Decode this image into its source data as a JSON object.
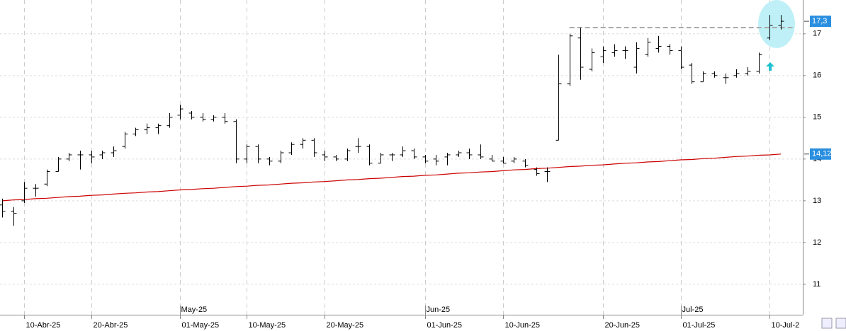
{
  "chart_data": {
    "type": "ohlc",
    "categories": [
      null,
      null,
      "10-Abr-25",
      null,
      null,
      null,
      null,
      null,
      "20-Abr-25",
      null,
      null,
      null,
      null,
      null,
      null,
      null,
      "01-May-25",
      null,
      null,
      null,
      null,
      null,
      "10-May-25",
      null,
      null,
      null,
      null,
      null,
      null,
      "20-May-25",
      null,
      null,
      null,
      null,
      null,
      null,
      null,
      null,
      "01-Jun-25",
      null,
      null,
      null,
      null,
      null,
      null,
      "10-Jun-25",
      null,
      null,
      null,
      null,
      null,
      null,
      null,
      null,
      "20-Jun-25",
      null,
      null,
      null,
      null,
      null,
      null,
      "01-Jul-25",
      null,
      null,
      null,
      null,
      null,
      null,
      null,
      "10-Jul-2",
      null
    ],
    "month_categories": [
      null,
      null,
      null,
      null,
      null,
      null,
      null,
      null,
      null,
      null,
      null,
      null,
      null,
      null,
      null,
      null,
      "May-25",
      null,
      null,
      null,
      null,
      null,
      null,
      null,
      null,
      null,
      null,
      null,
      null,
      null,
      null,
      null,
      null,
      null,
      null,
      null,
      null,
      null,
      "Jun-25",
      null,
      null,
      null,
      null,
      null,
      null,
      null,
      null,
      null,
      null,
      null,
      null,
      null,
      null,
      null,
      null,
      null,
      null,
      null,
      null,
      null,
      null,
      "Jul-25",
      null,
      null,
      null,
      null,
      null,
      null,
      null,
      null,
      null
    ],
    "open": [
      12.9,
      12.75,
      13.0,
      13.3,
      13.4,
      13.7,
      14.0,
      14.1,
      14.1,
      14.1,
      14.15,
      14.3,
      14.6,
      14.7,
      14.75,
      14.8,
      15.05,
      15.1,
      15.0,
      14.95,
      15.0,
      14.9,
      14.0,
      14.3,
      14.0,
      13.95,
      14.15,
      14.35,
      14.45,
      14.1,
      14.05,
      14.0,
      14.3,
      14.3,
      13.9,
      14.1,
      14.1,
      14.2,
      14.05,
      14.0,
      14.05,
      14.1,
      14.15,
      14.1,
      14.0,
      13.95,
      13.95,
      13.95,
      13.75,
      13.7,
      14.45,
      15.8,
      16.9,
      16.15,
      16.45,
      16.55,
      16.6,
      16.2,
      16.5,
      16.65,
      16.7,
      16.6,
      16.25,
      15.85,
      16.05,
      15.95,
      16.0,
      16.05,
      16.1,
      16.9,
      17.2
    ],
    "high": [
      13.05,
      12.85,
      13.45,
      13.4,
      13.75,
      14.05,
      14.15,
      14.2,
      14.2,
      14.2,
      14.3,
      14.65,
      14.75,
      14.85,
      14.85,
      15.1,
      15.3,
      15.15,
      15.1,
      15.05,
      15.1,
      14.95,
      14.35,
      14.35,
      14.05,
      14.2,
      14.4,
      14.5,
      14.5,
      14.2,
      14.1,
      14.25,
      14.5,
      14.35,
      14.15,
      14.15,
      14.3,
      14.25,
      14.1,
      14.1,
      14.15,
      14.2,
      14.25,
      14.35,
      14.1,
      14.05,
      14.05,
      14.0,
      13.8,
      13.8,
      16.5,
      17.0,
      17.15,
      16.65,
      16.7,
      16.75,
      16.7,
      16.8,
      16.9,
      16.95,
      16.75,
      16.7,
      16.3,
      16.1,
      16.1,
      16.05,
      16.15,
      16.2,
      16.55,
      17.45,
      17.45
    ],
    "low": [
      12.6,
      12.4,
      12.95,
      13.1,
      13.35,
      13.7,
      13.95,
      13.75,
      13.9,
      14.0,
      14.05,
      14.25,
      14.55,
      14.6,
      14.6,
      14.75,
      14.95,
      14.95,
      14.9,
      14.9,
      14.85,
      13.9,
      13.9,
      13.9,
      13.85,
      13.9,
      14.1,
      14.25,
      14.05,
      13.95,
      13.95,
      13.95,
      14.15,
      13.85,
      13.9,
      13.95,
      14.05,
      14.0,
      13.9,
      13.85,
      13.85,
      14.05,
      14.0,
      14.0,
      13.95,
      13.9,
      13.9,
      13.8,
      13.6,
      13.45,
      14.45,
      15.75,
      15.9,
      16.1,
      16.3,
      16.45,
      16.4,
      16.05,
      16.45,
      16.55,
      16.5,
      16.15,
      15.8,
      15.85,
      15.95,
      15.8,
      15.95,
      16.0,
      16.05,
      16.85,
      17.1
    ],
    "close": [
      12.75,
      12.7,
      13.3,
      13.3,
      13.7,
      14.0,
      14.1,
      14.1,
      14.05,
      14.15,
      14.2,
      14.6,
      14.7,
      14.75,
      14.8,
      15.0,
      15.2,
      15.0,
      14.95,
      15.0,
      14.9,
      14.0,
      14.3,
      14.0,
      13.95,
      14.15,
      14.35,
      14.45,
      14.15,
      14.05,
      14.0,
      14.2,
      14.3,
      13.9,
      14.1,
      14.1,
      14.2,
      14.05,
      13.95,
      13.95,
      14.1,
      14.15,
      14.1,
      14.05,
      13.95,
      13.9,
      14.0,
      13.85,
      13.65,
      13.7,
      15.8,
      16.95,
      16.2,
      16.55,
      16.6,
      16.6,
      16.6,
      16.65,
      16.8,
      16.7,
      16.6,
      16.2,
      15.85,
      16.05,
      16.0,
      15.95,
      16.05,
      16.1,
      16.5,
      17.2,
      17.3
    ],
    "color": "#000000",
    "ma": {
      "color": "#cc0000",
      "values": [
        13.0,
        13.02,
        13.03,
        13.05,
        13.06,
        13.08,
        13.1,
        13.11,
        13.13,
        13.14,
        13.16,
        13.18,
        13.19,
        13.21,
        13.22,
        13.24,
        13.26,
        13.27,
        13.29,
        13.3,
        13.32,
        13.34,
        13.35,
        13.37,
        13.38,
        13.4,
        13.42,
        13.43,
        13.45,
        13.46,
        13.48,
        13.5,
        13.51,
        13.53,
        13.54,
        13.56,
        13.58,
        13.59,
        13.61,
        13.62,
        13.64,
        13.66,
        13.67,
        13.69,
        13.7,
        13.72,
        13.74,
        13.75,
        13.77,
        13.78,
        13.8,
        13.82,
        13.83,
        13.85,
        13.86,
        13.88,
        13.9,
        13.91,
        13.93,
        13.94,
        13.96,
        13.98,
        13.99,
        14.01,
        14.02,
        14.04,
        14.06,
        14.07,
        14.09,
        14.1,
        14.12
      ]
    },
    "hline": {
      "value": 17.15,
      "color": "#aaaaaa"
    },
    "price_markers": [
      {
        "value": 17.3,
        "label": "17,3",
        "color": "#2a8fe0"
      },
      {
        "value": 14.12,
        "label": "14,12",
        "color": "#2a8fe0"
      }
    ],
    "ylim": [
      10.27,
      17.81
    ],
    "yticks": [
      11,
      12,
      13,
      14,
      15,
      16,
      17
    ],
    "grid": true
  }
}
